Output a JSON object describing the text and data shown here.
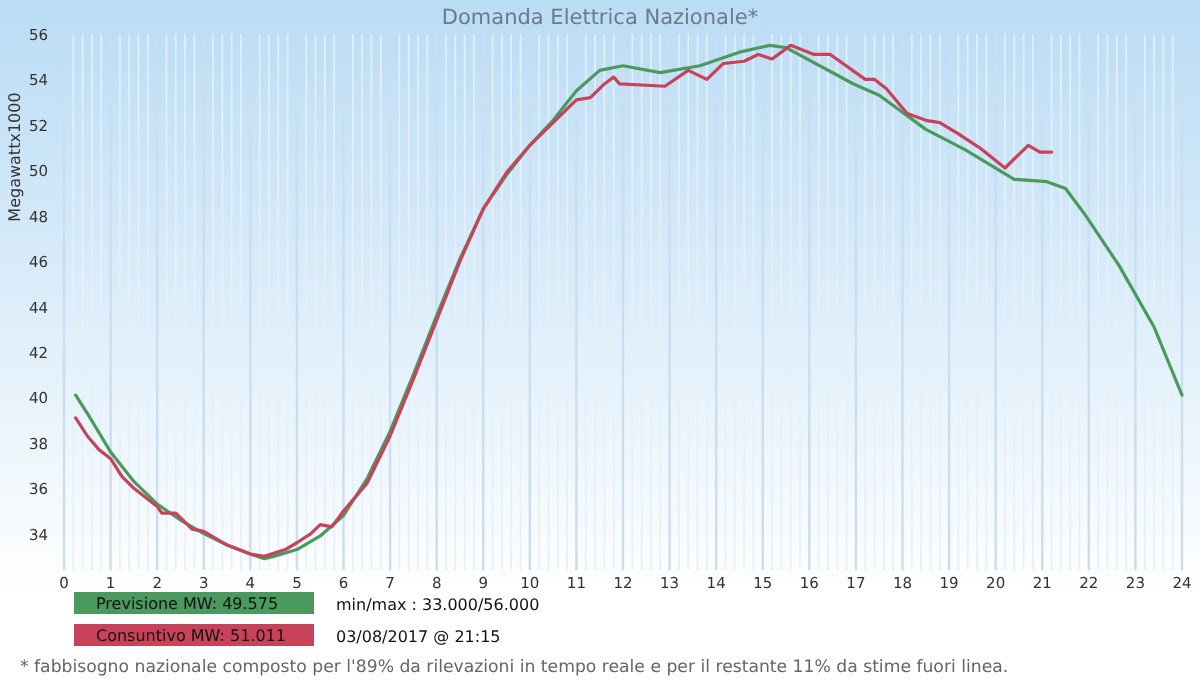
{
  "chart_data": {
    "type": "line",
    "title": "Domanda Elettrica Nazionale*",
    "ylabel": "Megawattx1000",
    "xlim": [
      0,
      24
    ],
    "xticks": [
      0,
      1,
      2,
      3,
      4,
      5,
      6,
      7,
      8,
      9,
      10,
      11,
      12,
      13,
      14,
      15,
      16,
      17,
      18,
      19,
      20,
      21,
      22,
      23,
      24
    ],
    "ylim": [
      32.4,
      56
    ],
    "yticks": [
      34,
      36,
      38,
      40,
      42,
      44,
      46,
      48,
      50,
      52,
      54,
      56
    ],
    "grid": "x",
    "legend": "bottom left",
    "marker": "none",
    "line_style": "solid",
    "series": [
      {
        "name": "Previsione MW: 49.575",
        "color": "#4a9a5e",
        "x": [
          0.25,
          0.5,
          1,
          1.5,
          2,
          2.5,
          3,
          3.5,
          4,
          4.3,
          4.5,
          5,
          5.5,
          6,
          6.5,
          7,
          7.5,
          8,
          8.5,
          9,
          9.5,
          10,
          10.5,
          11,
          11.5,
          12,
          12.8,
          13.65,
          14.5,
          15.15,
          15.5,
          16.95,
          17.5,
          18.5,
          19.35,
          20.4,
          21.1,
          21.5,
          21.9,
          22.65,
          23.4,
          24
        ],
        "values": [
          40.1,
          39.3,
          37.6,
          36.3,
          35.3,
          34.6,
          34.0,
          33.5,
          33.1,
          32.9,
          33.0,
          33.3,
          33.9,
          34.8,
          36.4,
          38.5,
          41.0,
          43.6,
          46.1,
          48.3,
          49.8,
          51.1,
          52.2,
          53.5,
          54.4,
          54.6,
          54.3,
          54.6,
          55.2,
          55.5,
          55.4,
          53.8,
          53.3,
          51.8,
          50.9,
          49.6,
          49.5,
          49.2,
          48.1,
          45.8,
          43.1,
          40.1
        ]
      },
      {
        "name": "Consuntivo MW: 51.011",
        "color": "#c8425a",
        "x": [
          0.25,
          0.5,
          0.75,
          1,
          1.25,
          1.5,
          2,
          2.1,
          2.4,
          2.75,
          3,
          3.5,
          4,
          4.3,
          4.75,
          5,
          5.3,
          5.5,
          5.75,
          6,
          6.5,
          7,
          7.5,
          8,
          8.5,
          9,
          9.5,
          10,
          10.5,
          10.8,
          11,
          11.3,
          11.6,
          11.8,
          11.93,
          12.9,
          13.4,
          13.8,
          14.15,
          14.6,
          14.9,
          15.2,
          15.6,
          16.1,
          16.45,
          17.2,
          17.4,
          17.65,
          18.1,
          18.5,
          18.8,
          19.2,
          19.65,
          20.2,
          20.7,
          20.95,
          21.2
        ],
        "values": [
          39.1,
          38.3,
          37.7,
          37.3,
          36.5,
          36.0,
          35.2,
          34.9,
          34.9,
          34.2,
          34.1,
          33.5,
          33.1,
          33.0,
          33.3,
          33.6,
          34.0,
          34.4,
          34.3,
          35.0,
          36.2,
          38.3,
          40.8,
          43.4,
          46.0,
          48.3,
          49.9,
          51.1,
          52.1,
          52.7,
          53.1,
          53.2,
          53.8,
          54.1,
          53.8,
          53.7,
          54.4,
          54.0,
          54.7,
          54.8,
          55.1,
          54.9,
          55.5,
          55.1,
          55.1,
          54.0,
          54.0,
          53.6,
          52.5,
          52.2,
          52.1,
          51.6,
          51.0,
          50.1,
          51.1,
          50.8,
          50.8
        ]
      }
    ],
    "annotations": [
      "min/max : 33.000/56.000",
      "03/08/2017 @ 21:15",
      "* fabbisogno nazionale composto per l'89% da rilevazioni in tempo reale e per il restante 11% da stime fuori linea."
    ]
  }
}
